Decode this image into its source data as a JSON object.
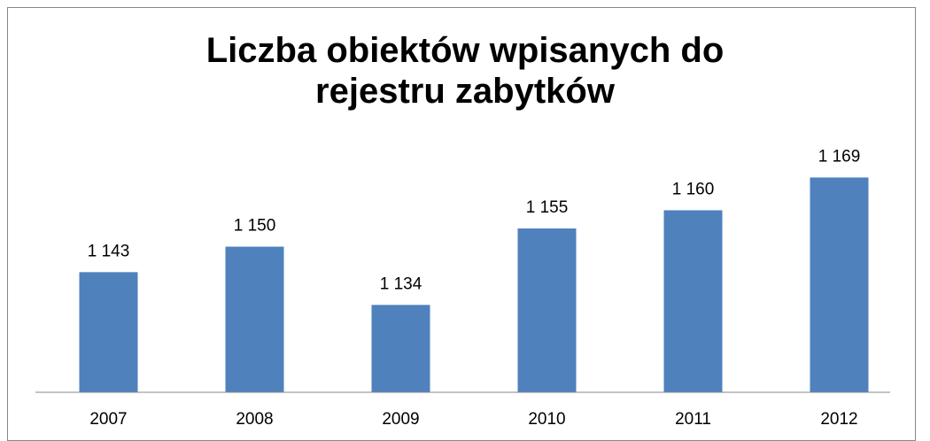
{
  "chart_data": {
    "type": "bar",
    "title": "Liczba obiektów wpisanych do rejestru zabytków",
    "categories": [
      "2007",
      "2008",
      "2009",
      "2010",
      "2011",
      "2012"
    ],
    "values": [
      1143,
      1150,
      1134,
      1155,
      1160,
      1169
    ],
    "value_labels": [
      "1 143",
      "1 150",
      "1 134",
      "1 155",
      "1 160",
      "1 169"
    ],
    "color": "#4f81bd",
    "ylim": [
      1110,
      1191
    ]
  }
}
